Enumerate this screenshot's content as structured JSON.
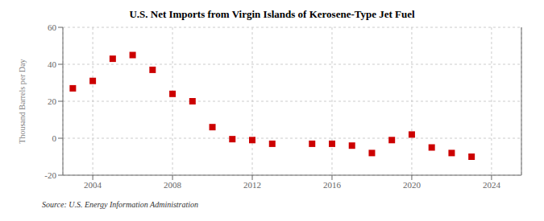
{
  "chart_data": {
    "type": "scatter",
    "title": "U.S. Net Imports from Virgin Islands of Kerosene-Type Jet Fuel",
    "y_label": "Thousand Barrels per Day",
    "annotations": [
      "Source: U.S. Energy Information Administration"
    ],
    "x": [
      2003,
      2004,
      2005,
      2006,
      2007,
      2008,
      2009,
      2010,
      2011,
      2012,
      2013,
      2015,
      2016,
      2017,
      2018,
      2019,
      2020,
      2021,
      2022,
      2023
    ],
    "values": [
      27,
      31,
      43,
      45,
      37,
      24,
      20,
      6,
      -0.5,
      -1,
      -3,
      -3,
      -3,
      -4,
      -8,
      -1,
      2,
      -5,
      -8,
      -10
    ],
    "color": "#cc0000",
    "marker": "square",
    "xlim": [
      2002.5,
      2025.5
    ],
    "xticks": [
      2004,
      2008,
      2012,
      2016,
      2020,
      2024
    ],
    "ylim": [
      -20,
      60
    ],
    "yticks": [
      -20,
      0,
      20,
      40,
      60
    ],
    "grid": true
  }
}
